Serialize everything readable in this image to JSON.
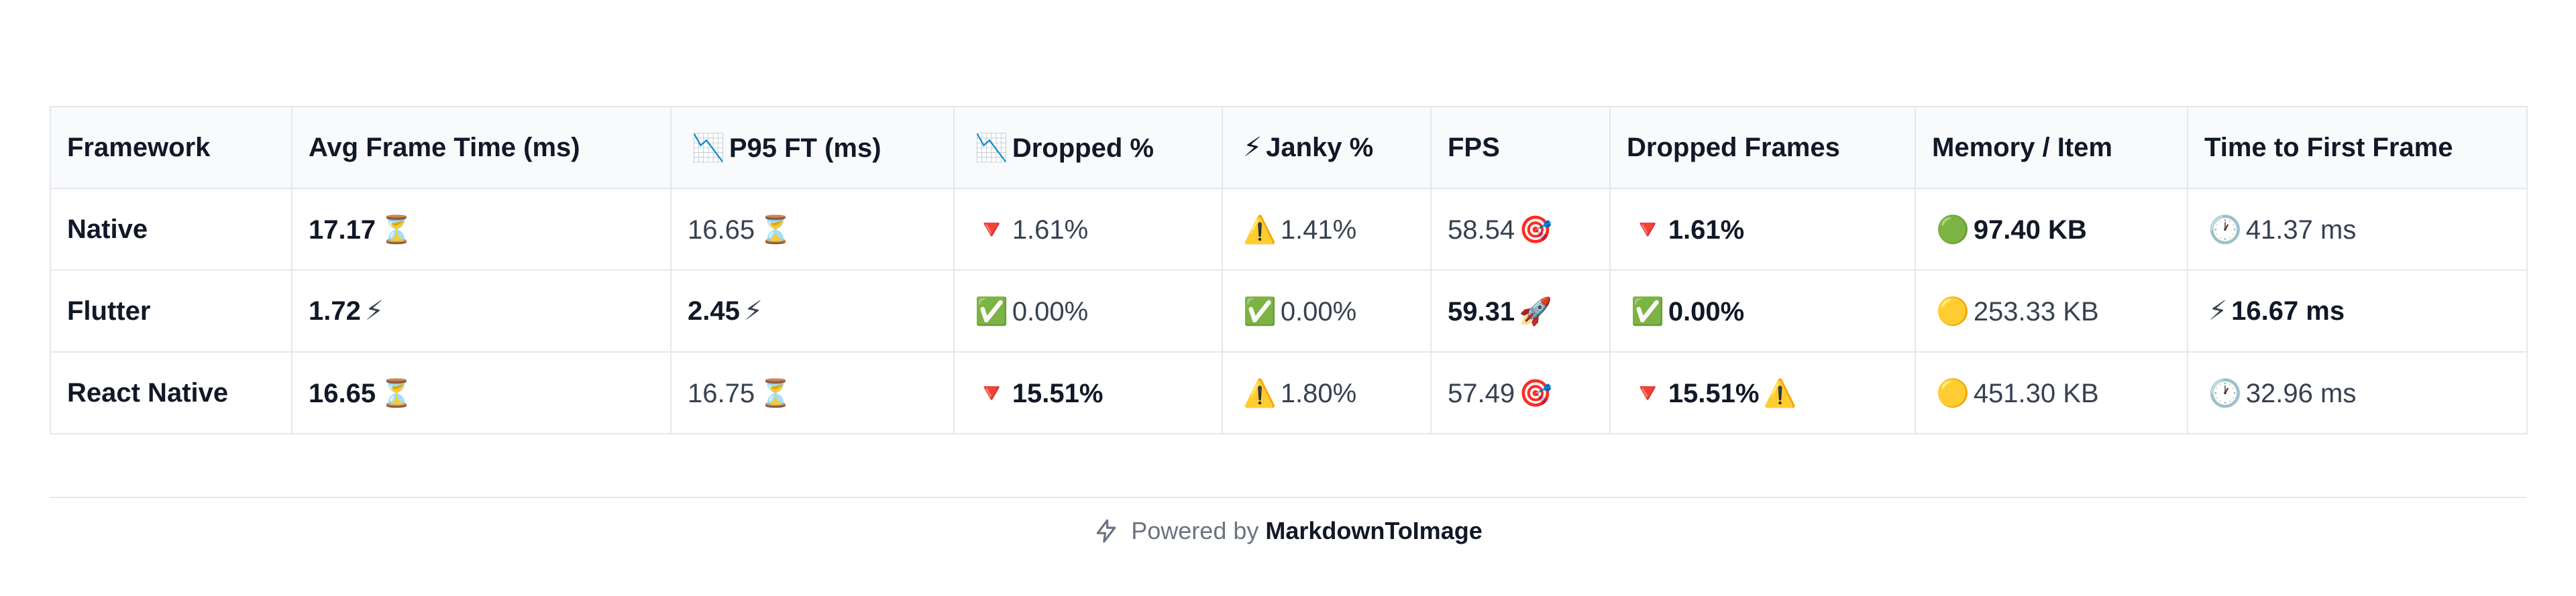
{
  "table": {
    "headers": [
      {
        "icon": "",
        "text": "Framework"
      },
      {
        "icon": "",
        "text": "Avg Frame Time (ms)"
      },
      {
        "icon": "📉",
        "text": "P95 FT (ms)"
      },
      {
        "icon": "📉",
        "text": "Dropped %"
      },
      {
        "icon": "⚡",
        "text": "Janky %"
      },
      {
        "icon": "",
        "text": "FPS"
      },
      {
        "icon": "",
        "text": "Dropped Frames"
      },
      {
        "icon": "",
        "text": "Memory / Item"
      },
      {
        "icon": "",
        "text": "Time to First Frame"
      }
    ],
    "rows": [
      [
        {
          "pre": "",
          "text": "Native",
          "post": "",
          "bold": true
        },
        {
          "pre": "",
          "text": "17.17",
          "post": "⏳",
          "bold": true
        },
        {
          "pre": "",
          "text": "16.65",
          "post": "⏳",
          "bold": false
        },
        {
          "pre": "🔻",
          "text": "1.61%",
          "post": "",
          "bold": false
        },
        {
          "pre": "⚠️",
          "text": "1.41%",
          "post": "",
          "bold": false
        },
        {
          "pre": "",
          "text": "58.54",
          "post": "🎯",
          "bold": false
        },
        {
          "pre": "🔻",
          "text": "1.61%",
          "post": "",
          "bold": true
        },
        {
          "pre": "🟢",
          "text": "97.40 KB",
          "post": "",
          "bold": true
        },
        {
          "pre": "🕐",
          "text": "41.37 ms",
          "post": "",
          "bold": false
        }
      ],
      [
        {
          "pre": "",
          "text": "Flutter",
          "post": "",
          "bold": true
        },
        {
          "pre": "",
          "text": "1.72",
          "post": "⚡",
          "bold": true
        },
        {
          "pre": "",
          "text": "2.45",
          "post": "⚡",
          "bold": true
        },
        {
          "pre": "✅",
          "text": "0.00%",
          "post": "",
          "bold": false
        },
        {
          "pre": "✅",
          "text": "0.00%",
          "post": "",
          "bold": false
        },
        {
          "pre": "",
          "text": "59.31",
          "post": "🚀",
          "bold": true
        },
        {
          "pre": "✅",
          "text": "0.00%",
          "post": "",
          "bold": true
        },
        {
          "pre": "🟡",
          "text": "253.33 KB",
          "post": "",
          "bold": false
        },
        {
          "pre": "⚡",
          "text": "16.67 ms",
          "post": "",
          "bold": true
        }
      ],
      [
        {
          "pre": "",
          "text": "React Native",
          "post": "",
          "bold": true
        },
        {
          "pre": "",
          "text": "16.65",
          "post": "⏳",
          "bold": true
        },
        {
          "pre": "",
          "text": "16.75",
          "post": "⏳",
          "bold": false
        },
        {
          "pre": "🔻",
          "text": "15.51%",
          "post": "",
          "bold": true
        },
        {
          "pre": "⚠️",
          "text": "1.80%",
          "post": "",
          "bold": false
        },
        {
          "pre": "",
          "text": "57.49",
          "post": "🎯",
          "bold": false
        },
        {
          "pre": "🔻",
          "text": "15.51%",
          "post": "⚠️",
          "bold": true
        },
        {
          "pre": "🟡",
          "text": "451.30 KB",
          "post": "",
          "bold": false
        },
        {
          "pre": "🕐",
          "text": "32.96 ms",
          "post": "",
          "bold": false
        }
      ]
    ]
  },
  "footer": {
    "prefix": "Powered by",
    "brand": "MarkdownToImage",
    "icon": "lightning-bolt-icon"
  }
}
